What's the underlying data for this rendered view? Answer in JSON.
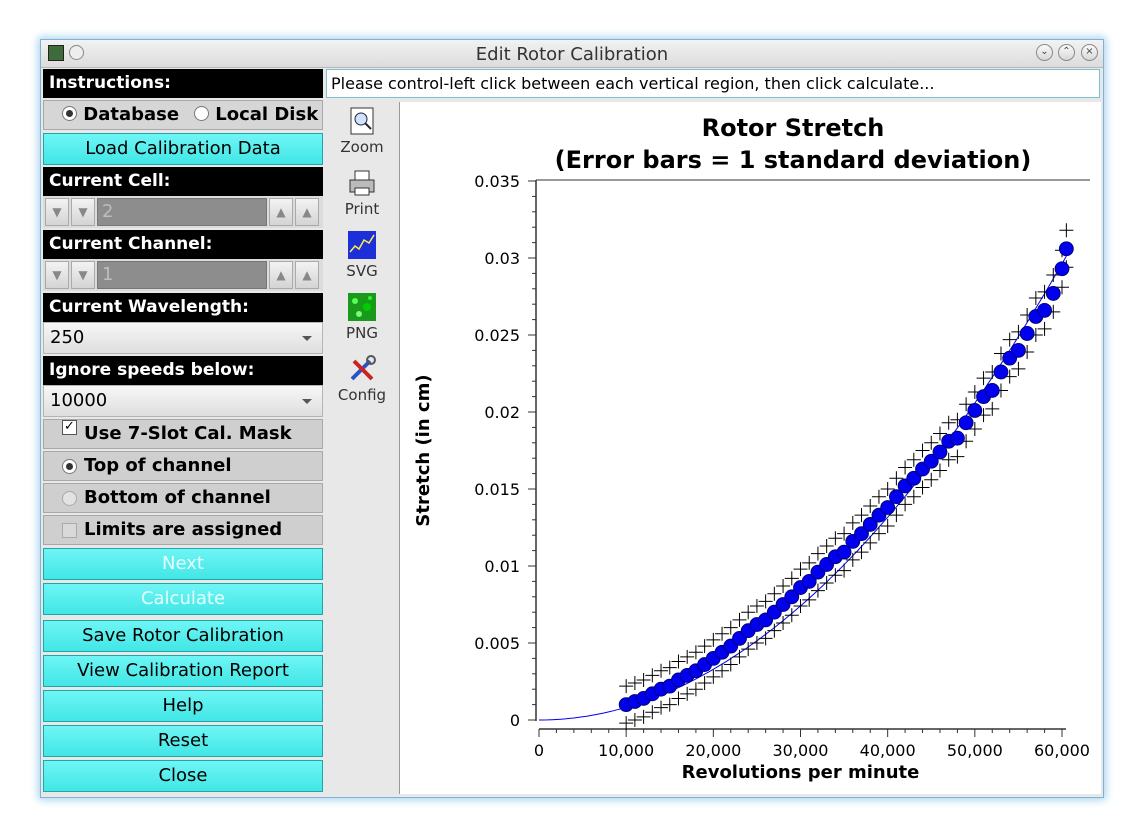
{
  "window": {
    "title": "Edit Rotor Calibration"
  },
  "instructions": {
    "label": "Instructions:",
    "text": "Please control-left click between each vertical region, then click calculate..."
  },
  "source": {
    "database_label": "Database",
    "local_disk_label": "Local Disk",
    "selected": "Database"
  },
  "load_button": "Load Calibration Data",
  "current_cell": {
    "label": "Current Cell:",
    "value": "2"
  },
  "current_channel": {
    "label": "Current Channel:",
    "value": "1"
  },
  "current_wavelength": {
    "label": "Current Wavelength:",
    "value": "250"
  },
  "ignore_speeds": {
    "label": "Ignore speeds below:",
    "value": "10000"
  },
  "options": {
    "mask_label": "Use 7-Slot Cal. Mask",
    "mask_checked": true,
    "top_label": "Top of channel",
    "bottom_label": "Bottom of channel",
    "limits_label": "Limits are assigned"
  },
  "buttons": {
    "next": "Next",
    "calculate": "Calculate",
    "save": "Save Rotor Calibration",
    "view_report": "View Calibration Report",
    "help": "Help",
    "reset": "Reset",
    "close": "Close"
  },
  "tools": {
    "zoom": "Zoom",
    "print": "Print",
    "svg": "SVG",
    "png": "PNG",
    "config": "Config"
  },
  "chart_data": {
    "type": "scatter",
    "title": "Rotor Stretch",
    "subtitle": "(Error bars = 1 standard deviation)",
    "xlabel": "Revolutions per minute",
    "ylabel": "Stretch (in cm)",
    "xlim": [
      0,
      60000
    ],
    "ylim": [
      0,
      0.035
    ],
    "xticks": [
      "0",
      "10,000",
      "20,000",
      "30,000",
      "40,000",
      "50,000",
      "60,000"
    ],
    "yticks": [
      "0",
      "0.005",
      "0.01",
      "0.015",
      "0.02",
      "0.025",
      "0.03",
      "0.035"
    ],
    "fit_curve": "quadratic through origin",
    "marker_color": "#0000ee",
    "points": [
      [
        10000,
        0.001
      ],
      [
        11000,
        0.0012
      ],
      [
        12000,
        0.0014
      ],
      [
        13000,
        0.0017
      ],
      [
        14000,
        0.002
      ],
      [
        15000,
        0.0022
      ],
      [
        16000,
        0.0026
      ],
      [
        17000,
        0.0029
      ],
      [
        18000,
        0.0032
      ],
      [
        19000,
        0.0036
      ],
      [
        20000,
        0.004
      ],
      [
        21000,
        0.0044
      ],
      [
        22000,
        0.0048
      ],
      [
        23000,
        0.0053
      ],
      [
        24000,
        0.0058
      ],
      [
        25000,
        0.0062
      ],
      [
        26000,
        0.0065
      ],
      [
        27000,
        0.007
      ],
      [
        28000,
        0.0075
      ],
      [
        29000,
        0.008
      ],
      [
        30000,
        0.0086
      ],
      [
        31000,
        0.009
      ],
      [
        32000,
        0.0096
      ],
      [
        33000,
        0.0101
      ],
      [
        34000,
        0.0106
      ],
      [
        35000,
        0.0109
      ],
      [
        36000,
        0.0116
      ],
      [
        37000,
        0.0121
      ],
      [
        38000,
        0.0127
      ],
      [
        39000,
        0.0133
      ],
      [
        40000,
        0.0138
      ],
      [
        41000,
        0.0145
      ],
      [
        42000,
        0.0152
      ],
      [
        43000,
        0.0157
      ],
      [
        44000,
        0.0163
      ],
      [
        45000,
        0.0168
      ],
      [
        46000,
        0.0174
      ],
      [
        47000,
        0.0181
      ],
      [
        48000,
        0.0183
      ],
      [
        49000,
        0.0193
      ],
      [
        50000,
        0.0201
      ],
      [
        51000,
        0.021
      ],
      [
        52000,
        0.0214
      ],
      [
        53000,
        0.0226
      ],
      [
        54000,
        0.0235
      ],
      [
        55000,
        0.024
      ],
      [
        56000,
        0.0251
      ],
      [
        57000,
        0.0262
      ],
      [
        58000,
        0.0266
      ],
      [
        59000,
        0.0277
      ],
      [
        60000,
        0.0293
      ],
      [
        60500,
        0.0306
      ]
    ],
    "error": 0.0012
  }
}
